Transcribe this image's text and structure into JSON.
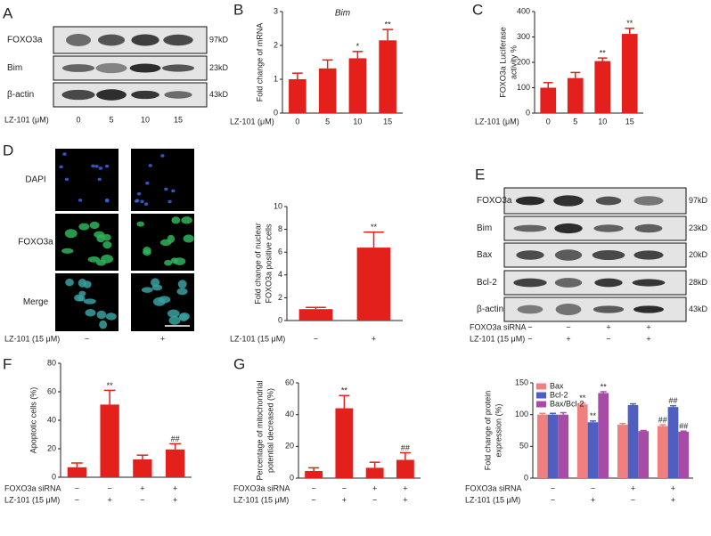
{
  "blot_a": {
    "panel": "A",
    "rows": [
      {
        "label": "FOXO3a",
        "size": "97kD"
      },
      {
        "label": "Bim",
        "size": "23kD"
      },
      {
        "label": "β-actin",
        "size": "43kD"
      }
    ],
    "x_label": "LZ-101 (μM)",
    "lanes": [
      "0",
      "5",
      "10",
      "15"
    ]
  },
  "imaging_d": {
    "panel": "D",
    "rows": [
      "DAPI",
      "FOXO3a",
      "Merge"
    ],
    "x_label": "LZ-101 (15 μM)",
    "lanes": [
      "−",
      "+"
    ]
  },
  "blot_e": {
    "panel": "E",
    "rows": [
      {
        "label": "FOXO3a",
        "size": "97kD"
      },
      {
        "label": "Bim",
        "size": "23kD"
      },
      {
        "label": "Bax",
        "size": "20kD"
      },
      {
        "label": "Bcl-2",
        "size": "28kD"
      },
      {
        "label": "β-actin",
        "size": "43kD"
      }
    ],
    "conditions": [
      {
        "name": "FOXO3a siRNA",
        "marks": [
          "−",
          "−",
          "+",
          "+"
        ]
      },
      {
        "name": "LZ-101 (15 μM)",
        "marks": [
          "−",
          "+",
          "−",
          "+"
        ]
      }
    ]
  },
  "chart_data": [
    {
      "type": "bar",
      "panel": "B",
      "title": "Bim",
      "y_label": [
        "Fold change of mRNA"
      ],
      "x_label": "LZ-101 (μM)",
      "categories": [
        "0",
        "5",
        "10",
        "15"
      ],
      "values": [
        1.0,
        1.32,
        1.62,
        2.15
      ],
      "errors": [
        0.18,
        0.25,
        0.2,
        0.32
      ],
      "annotations": [
        null,
        null,
        "*",
        "**"
      ],
      "color": "#e3201b",
      "ylim": [
        0,
        3
      ],
      "yticks": [
        0,
        1,
        2,
        3
      ]
    },
    {
      "type": "bar",
      "panel": "C",
      "y_label": [
        "FOXO3a Luciferase",
        "activity %"
      ],
      "x_label": "LZ-101 (μM)",
      "categories": [
        "0",
        "5",
        "10",
        "15"
      ],
      "values": [
        100,
        138,
        205,
        312
      ],
      "errors": [
        20,
        22,
        12,
        22
      ],
      "annotations": [
        null,
        null,
        "**",
        "**"
      ],
      "color": "#e3201b",
      "ylim": [
        0,
        400
      ],
      "yticks": [
        0,
        100,
        200,
        300,
        400
      ]
    },
    {
      "type": "bar",
      "y_label": [
        "Fold change of nuclear",
        "FOXO3a positive cells"
      ],
      "x_label": "LZ-101 (15 μM)",
      "categories": [
        "−",
        "+"
      ],
      "values": [
        1.0,
        6.4
      ],
      "errors": [
        0.15,
        1.35
      ],
      "annotations": [
        null,
        "**"
      ],
      "color": "#e3201b",
      "ylim": [
        0,
        10
      ],
      "yticks": [
        0,
        2,
        4,
        6,
        8,
        10
      ]
    },
    {
      "type": "bar",
      "panel": "F",
      "y_label": [
        "Apoptotic cells (%)"
      ],
      "conditions": [
        {
          "name": "FOXO3a siRNA",
          "marks": [
            "−",
            "−",
            "+",
            "+"
          ]
        },
        {
          "name": "LZ-101 (15 μM)",
          "marks": [
            "−",
            "+",
            "−",
            "+"
          ]
        }
      ],
      "values": [
        7,
        51,
        12.5,
        19.5
      ],
      "errors": [
        3,
        10,
        3,
        4
      ],
      "annotations": [
        null,
        "**",
        null,
        "##"
      ],
      "color": "#e3201b",
      "ylim": [
        0,
        80
      ],
      "yticks": [
        0,
        20,
        40,
        60,
        80
      ]
    },
    {
      "type": "bar",
      "panel": "G",
      "y_label": [
        "Percentage of mitochondrial",
        "potential decreased (%)"
      ],
      "conditions": [
        {
          "name": "FOXO3a siRNA",
          "marks": [
            "−",
            "−",
            "+",
            "+"
          ]
        },
        {
          "name": "LZ-101 (15 μM)",
          "marks": [
            "−",
            "+",
            "−",
            "+"
          ]
        }
      ],
      "values": [
        4.5,
        44,
        6.5,
        11.5
      ],
      "errors": [
        2,
        8,
        3.5,
        4.5
      ],
      "annotations": [
        null,
        "**",
        null,
        "##"
      ],
      "color": "#e3201b",
      "ylim": [
        0,
        60
      ],
      "yticks": [
        0,
        20,
        40,
        60
      ]
    },
    {
      "type": "bar",
      "y_label": [
        "Fold change of protein",
        "expression (%)"
      ],
      "conditions": [
        {
          "name": "FOXO3a siRNA",
          "marks": [
            "−",
            "−",
            "+",
            "+"
          ]
        },
        {
          "name": "LZ-101 (15 μM)",
          "marks": [
            "−",
            "+",
            "−",
            "+"
          ]
        }
      ],
      "series": [
        {
          "name": "Bax",
          "color": "#f08080",
          "values": [
            100,
            116,
            84,
            82
          ],
          "errors": [
            2,
            2,
            2,
            2
          ],
          "annotations": [
            null,
            "**",
            null,
            "##"
          ]
        },
        {
          "name": "Bcl-2",
          "color": "#4f5fbf",
          "values": [
            100,
            88,
            115,
            112
          ],
          "errors": [
            2,
            2,
            2,
            2
          ],
          "annotations": [
            null,
            "**",
            null,
            "##"
          ]
        },
        {
          "name": "Bax/Bcl-2",
          "color": "#a64ca6",
          "values": [
            100,
            134,
            74,
            73
          ],
          "errors": [
            3,
            2,
            1,
            1
          ],
          "annotations": [
            null,
            "**",
            null,
            "##"
          ]
        }
      ],
      "legend": "top-left",
      "ylim": [
        0,
        150
      ],
      "yticks": [
        0,
        50,
        100,
        150
      ]
    }
  ]
}
